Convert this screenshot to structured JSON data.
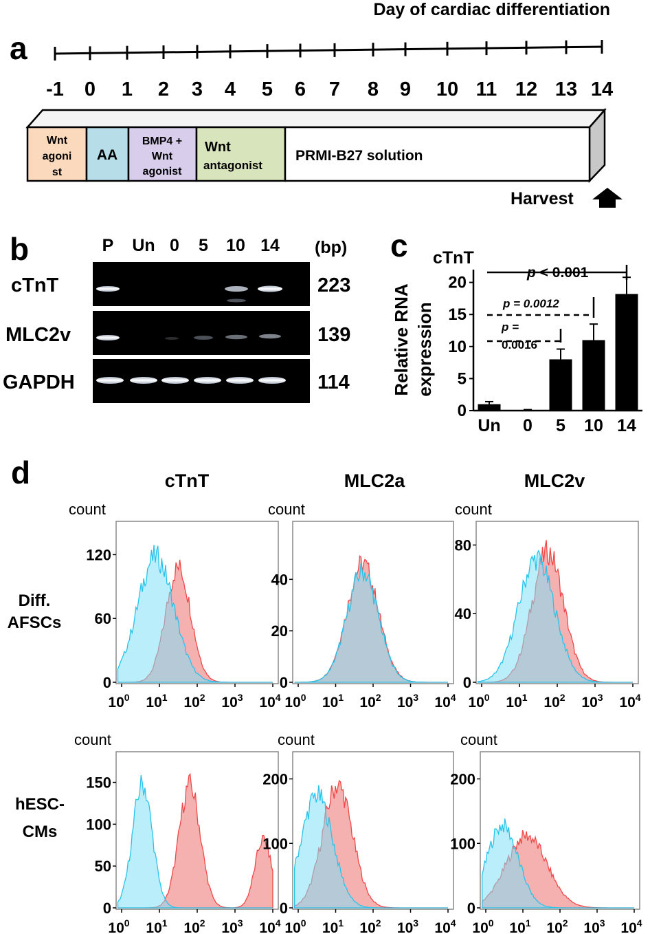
{
  "panel_a": {
    "letter": "a",
    "title": "Day of cardiac differentiation",
    "days": [
      "-1",
      "0",
      "1",
      "2",
      "3",
      "4",
      "5",
      "6",
      "7",
      "8",
      "9",
      "10",
      "11",
      "12",
      "13",
      "14"
    ],
    "stages": [
      {
        "line1": "Wnt",
        "line2": "agoni",
        "line3": "st",
        "color": "#fad9bd"
      },
      {
        "line1": "AA",
        "line2": "",
        "line3": "",
        "color": "#b7dde8"
      },
      {
        "line1": "BMP4 +",
        "line2": "Wnt",
        "line3": "agonist",
        "color": "#d9cdec"
      },
      {
        "line1": "Wnt",
        "line2": "antagonist",
        "line3": "",
        "color": "#d8e4bc"
      },
      {
        "line1": "PRMI-B27  solution",
        "line2": "",
        "line3": "",
        "color": "#ffffff"
      }
    ],
    "harvest": "Harvest"
  },
  "panel_b": {
    "letter": "b",
    "lanes": [
      "P",
      "Un",
      "0",
      "5",
      "10",
      "14"
    ],
    "bp_label": "(bp)",
    "rows": [
      {
        "gene": "cTnT",
        "bp": "223"
      },
      {
        "gene": "MLC2v",
        "bp": "139"
      },
      {
        "gene": "GAPDH",
        "bp": "114"
      }
    ]
  },
  "panel_c": {
    "letter": "c",
    "chart_data": {
      "type": "bar",
      "title": "cTnT",
      "ylabel": "Relative RNA expression",
      "ylabel_line1": "Relative RNA",
      "ylabel_line2": "expression",
      "categories": [
        "Un",
        "0",
        "5",
        "10",
        "14"
      ],
      "values": [
        1,
        0.1,
        8,
        11,
        18.2
      ],
      "errors": [
        0.4,
        0.05,
        1.6,
        2.5,
        2.6
      ],
      "ylim": [
        0,
        22
      ],
      "yticks": [
        "0",
        "5",
        "10",
        "15",
        "20"
      ],
      "annotations": {
        "p14": "p",
        "p14_rest": " < 0.001",
        "p10": "p = 0.0012",
        "p5_line1": "p =",
        "p5_line2": "0.0016"
      }
    }
  },
  "panel_d": {
    "letter": "d",
    "columns": [
      "cTnT",
      "MLC2a",
      "MLC2v"
    ],
    "rows": [
      {
        "line1": "Diff.",
        "line2": "AFSCs"
      },
      {
        "line1": "hESC-",
        "line2": "CMs"
      }
    ],
    "count_label": "count",
    "colors": {
      "control": "#7fe0f5",
      "control_line": "#29c3ea",
      "stain": "#f4a7a7",
      "stain_line": "#ee4848"
    },
    "chart_data": [
      {
        "type": "area",
        "panel": "AFSCs cTnT",
        "xlabel": "",
        "ylabel": "count",
        "xscale": "log",
        "xticks": [
          "10^0",
          "10^1",
          "10^2",
          "10^3",
          "10^4"
        ],
        "yticks": [
          "0",
          "60",
          "120"
        ],
        "ylim": [
          0,
          150
        ],
        "series": [
          {
            "name": "control",
            "peak_log": 0.9,
            "width": 0.48,
            "height": 118
          },
          {
            "name": "stained",
            "peak_log": 1.5,
            "width": 0.33,
            "height": 108
          }
        ]
      },
      {
        "type": "area",
        "panel": "AFSCs MLC2a",
        "xlabel": "",
        "ylabel": "count",
        "xscale": "log",
        "xticks": [
          "10^0",
          "10^1",
          "10^2",
          "10^3",
          "10^4"
        ],
        "yticks": [
          "0",
          "20",
          "40"
        ],
        "ylim": [
          0,
          62
        ],
        "series": [
          {
            "name": "control",
            "peak_log": 1.72,
            "width": 0.42,
            "height": 43
          },
          {
            "name": "stained",
            "peak_log": 1.72,
            "width": 0.42,
            "height": 46
          }
        ]
      },
      {
        "type": "area",
        "panel": "AFSCs MLC2v",
        "xlabel": "",
        "ylabel": "count",
        "xscale": "log",
        "xticks": [
          "10^0",
          "10^1",
          "10^2",
          "10^3",
          "10^4"
        ],
        "yticks": [
          "0",
          "40",
          "80"
        ],
        "ylim": [
          0,
          93
        ],
        "series": [
          {
            "name": "control",
            "peak_log": 1.45,
            "width": 0.48,
            "height": 72
          },
          {
            "name": "stained",
            "peak_log": 1.75,
            "width": 0.42,
            "height": 76
          }
        ]
      },
      {
        "type": "area",
        "panel": "hESC-CMs cTnT",
        "xlabel": "",
        "ylabel": "count",
        "xscale": "log",
        "xticks": [
          "10^0",
          "10^1",
          "10^2",
          "10^3",
          "10^4"
        ],
        "yticks": [
          "0",
          "50",
          "100",
          "150"
        ],
        "ylim": [
          0,
          185
        ],
        "series": [
          {
            "name": "control",
            "peak_log": 0.55,
            "width": 0.26,
            "height": 148
          },
          {
            "name": "stained",
            "peak_log": 1.8,
            "width": 0.28,
            "height": 147,
            "second_peak_log": 3.75,
            "second_width": 0.22,
            "second_height": 82
          }
        ]
      },
      {
        "type": "area",
        "panel": "hESC-CMs MLC2a",
        "xlabel": "",
        "ylabel": "count",
        "xscale": "log",
        "xticks": [
          "10^0",
          "10^1",
          "10^2",
          "10^3",
          "10^4"
        ],
        "yticks": [
          "0",
          "100",
          "200"
        ],
        "ylim": [
          0,
          240
        ],
        "series": [
          {
            "name": "control",
            "peak_log": 0.5,
            "width": 0.42,
            "height": 175
          },
          {
            "name": "stained",
            "peak_log": 1.05,
            "width": 0.4,
            "height": 190
          }
        ]
      },
      {
        "type": "area",
        "panel": "hESC-CMs MLC2v",
        "xlabel": "",
        "ylabel": "count",
        "xscale": "log",
        "xticks": [
          "10^0",
          "10^1",
          "10^2",
          "10^3",
          "10^4"
        ],
        "yticks": [
          "0",
          "100",
          "200"
        ],
        "ylim": [
          0,
          240
        ],
        "series": [
          {
            "name": "control",
            "peak_log": 0.45,
            "width": 0.42,
            "height": 128
          },
          {
            "name": "stained",
            "peak_log": 1.1,
            "width": 0.55,
            "height": 112
          }
        ]
      }
    ]
  }
}
